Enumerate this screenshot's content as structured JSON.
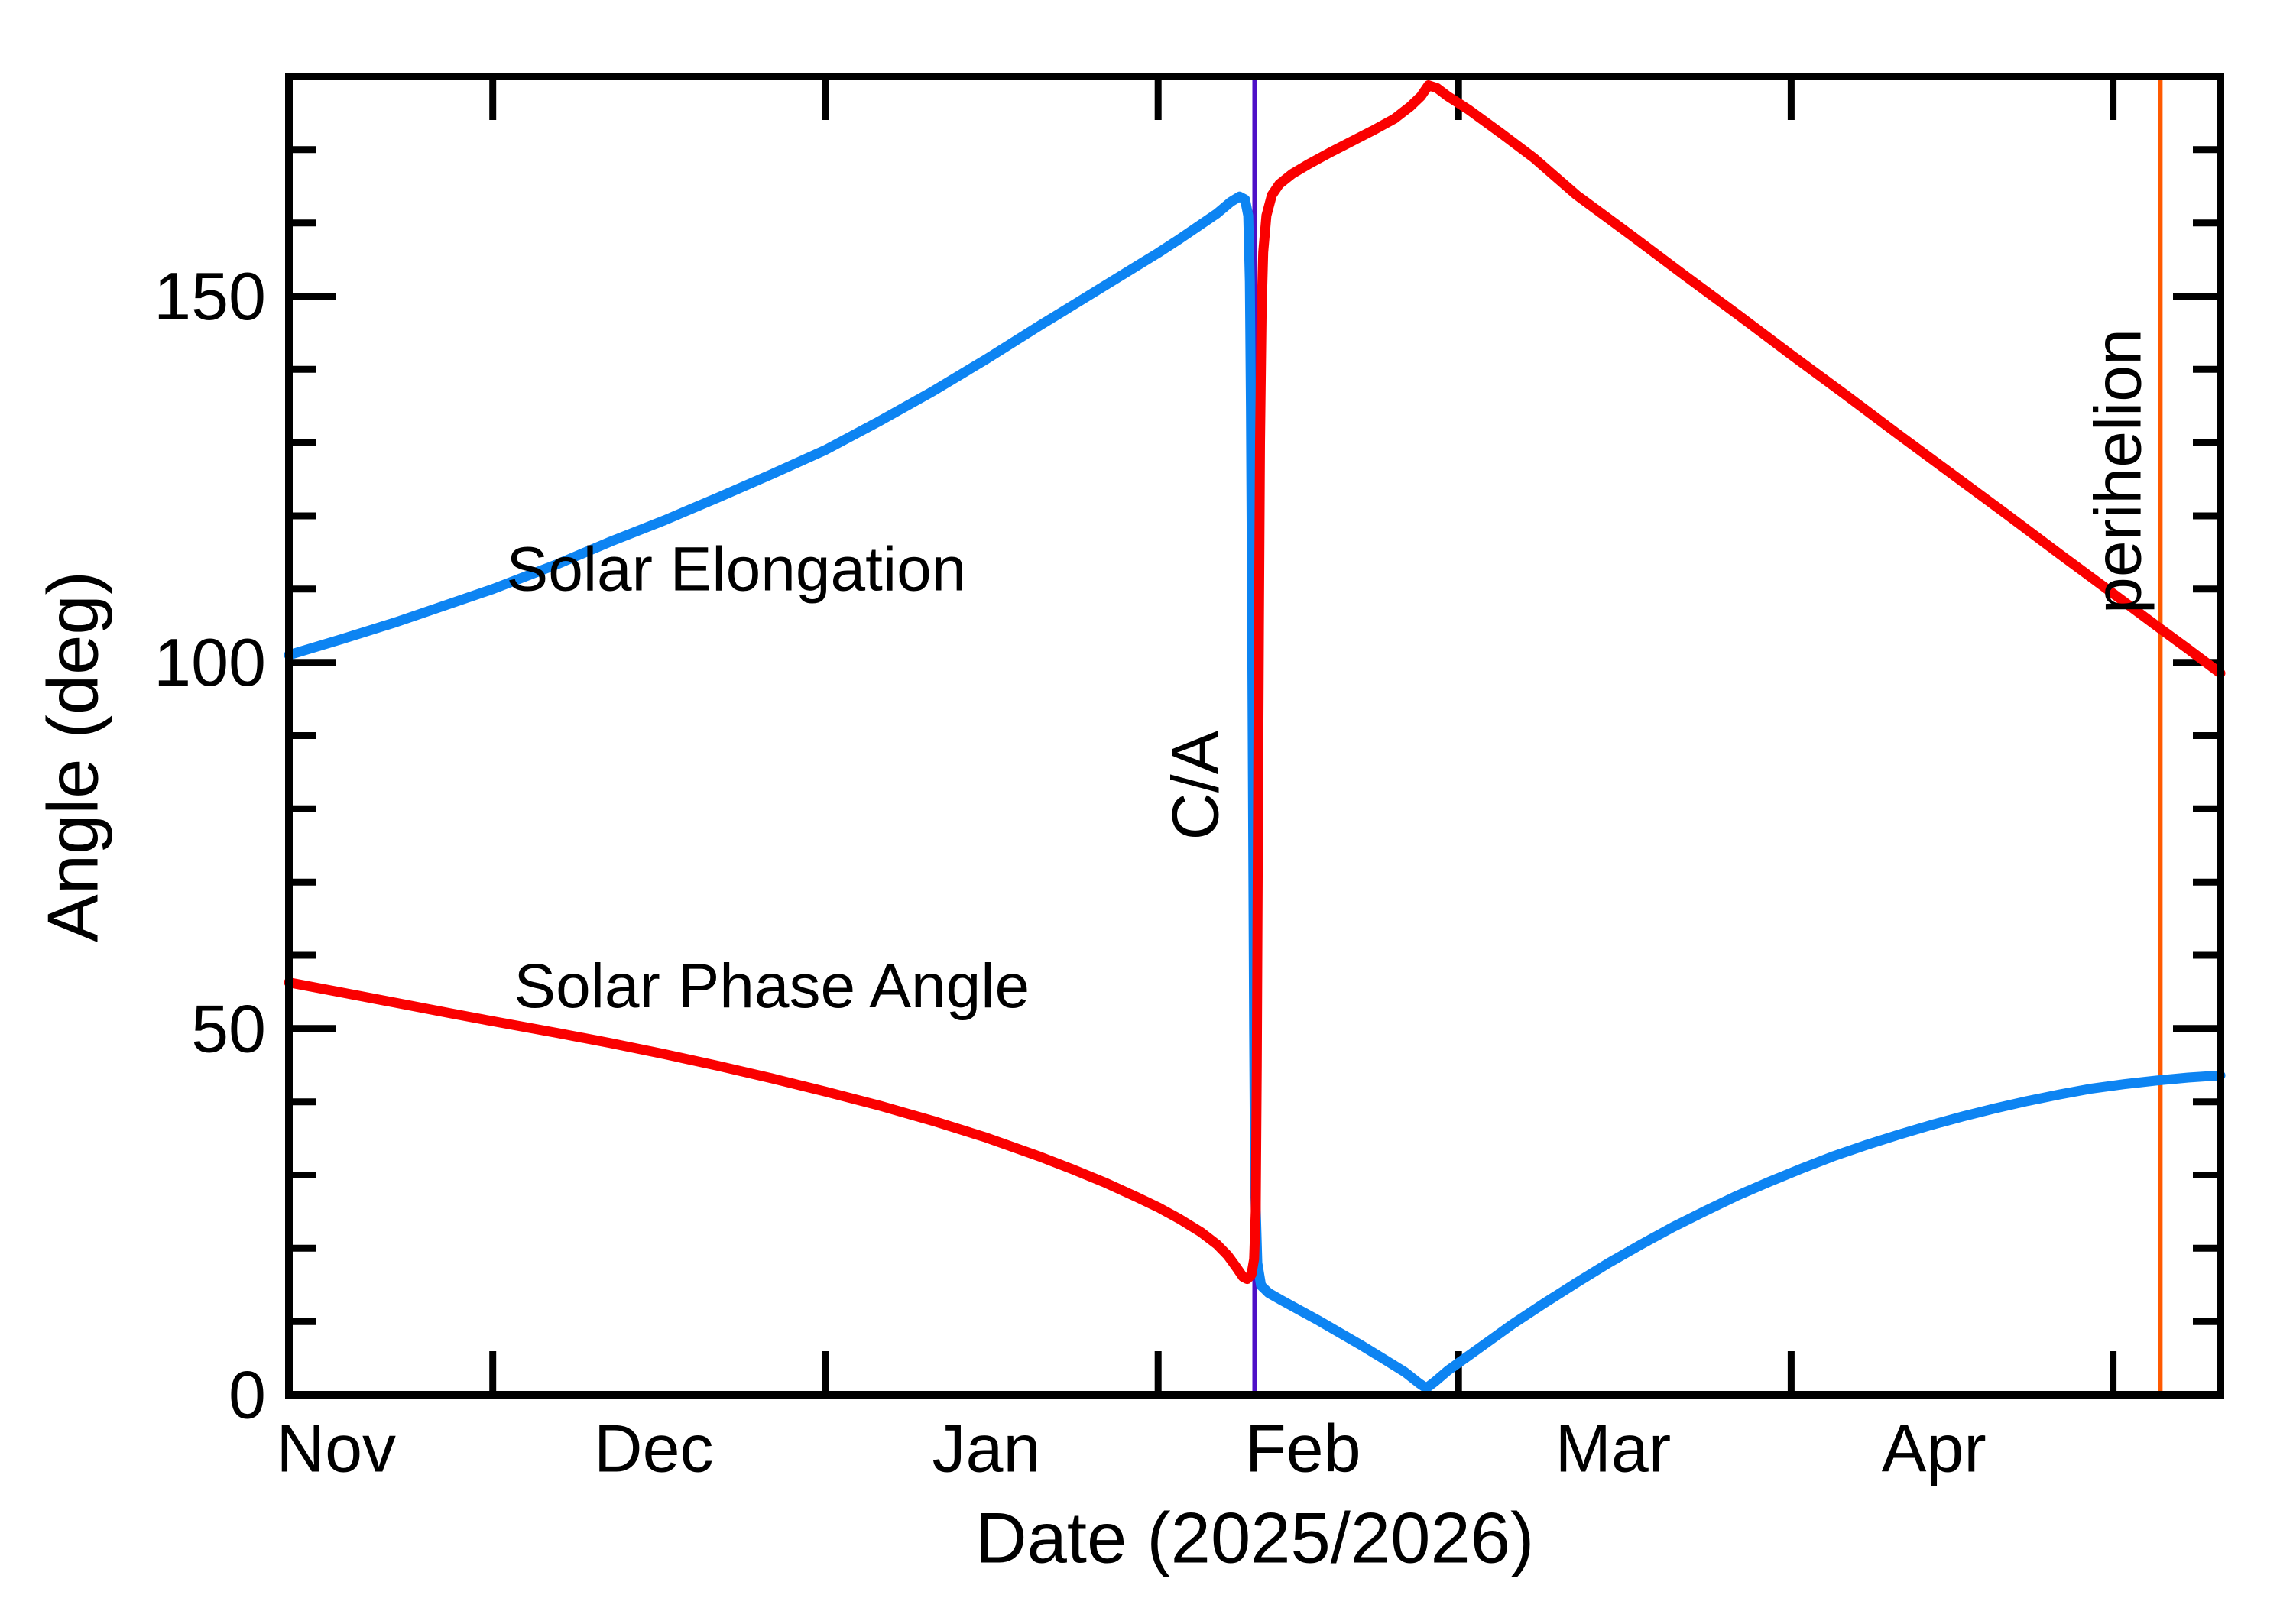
{
  "figure": {
    "background": "#ffffff",
    "frame_color": "#000000"
  },
  "chart_data": {
    "type": "line",
    "title": "",
    "xlabel": "Date (2025/2026)",
    "ylabel": "Angle (deg)",
    "x_axis": {
      "unit": "days from start (Nov 12, 2025)",
      "range_days": [
        0,
        180
      ],
      "month_boundary_tick_days": [
        19,
        50,
        81,
        109,
        140,
        170
      ],
      "month_labels": [
        {
          "text": "Nov",
          "day": 4.4
        },
        {
          "text": "Dec",
          "day": 34.0
        },
        {
          "text": "Jan",
          "day": 65.0
        },
        {
          "text": "Feb",
          "day": 94.5
        },
        {
          "text": "Mar",
          "day": 123.4
        },
        {
          "text": "Apr",
          "day": 153.3
        }
      ]
    },
    "y_axis": {
      "ylim": [
        0,
        180
      ],
      "major_ticks": [
        0,
        50,
        100,
        150
      ],
      "major_tick_labels": [
        "0",
        "50",
        "100",
        "150"
      ],
      "minor_tick_step": 10
    },
    "grid": "off",
    "legend_position": "labels drawn next to curves",
    "series": [
      {
        "name": "Solar Elongation",
        "color": "#0d84f2",
        "label_pos": {
          "day": 41.7,
          "deg": 112.7
        },
        "points": [
          [
            0,
            101
          ],
          [
            5,
            103.2
          ],
          [
            10,
            105.5
          ],
          [
            15,
            108
          ],
          [
            19,
            110
          ],
          [
            25,
            113.4
          ],
          [
            30,
            116.5
          ],
          [
            35,
            119.4
          ],
          [
            40,
            122.5
          ],
          [
            45,
            125.7
          ],
          [
            50,
            129
          ],
          [
            55,
            132.9
          ],
          [
            60,
            137
          ],
          [
            65,
            141.4
          ],
          [
            70,
            146
          ],
          [
            73,
            148.7
          ],
          [
            76,
            151.4
          ],
          [
            79,
            154.1
          ],
          [
            81,
            155.9
          ],
          [
            83,
            157.8
          ],
          [
            85,
            159.8
          ],
          [
            86.5,
            161.3
          ],
          [
            87.8,
            162.9
          ],
          [
            88.6,
            163.6
          ],
          [
            89.1,
            163.2
          ],
          [
            89.4,
            161
          ],
          [
            89.55,
            152
          ],
          [
            89.65,
            135
          ],
          [
            89.75,
            110
          ],
          [
            89.85,
            80
          ],
          [
            89.95,
            50
          ],
          [
            90.05,
            28
          ],
          [
            90.25,
            18
          ],
          [
            90.6,
            14.9
          ],
          [
            91.3,
            13.9
          ],
          [
            92.5,
            12.9
          ],
          [
            94,
            11.7
          ],
          [
            96,
            10.1
          ],
          [
            98,
            8.4
          ],
          [
            100,
            6.7
          ],
          [
            102,
            4.9
          ],
          [
            104,
            3.1
          ],
          [
            105.3,
            1.6
          ],
          [
            106,
            0.9
          ],
          [
            106.8,
            1.8
          ],
          [
            108,
            3.3
          ],
          [
            110,
            5.4
          ],
          [
            112,
            7.5
          ],
          [
            114,
            9.6
          ],
          [
            117,
            12.5
          ],
          [
            120,
            15.3
          ],
          [
            123,
            18
          ],
          [
            126,
            20.5
          ],
          [
            129,
            22.9
          ],
          [
            132,
            25.1
          ],
          [
            135,
            27.2
          ],
          [
            138,
            29.1
          ],
          [
            141,
            30.9
          ],
          [
            144,
            32.6
          ],
          [
            147,
            34.1
          ],
          [
            150,
            35.5
          ],
          [
            153,
            36.8
          ],
          [
            156,
            38
          ],
          [
            159,
            39.1
          ],
          [
            162,
            40.1
          ],
          [
            165,
            41
          ],
          [
            168,
            41.8
          ],
          [
            171,
            42.4
          ],
          [
            174,
            42.9
          ],
          [
            177,
            43.3
          ],
          [
            180,
            43.6
          ]
        ]
      },
      {
        "name": "Solar Phase Angle",
        "color": "#fa0000",
        "label_pos": {
          "day": 45.0,
          "deg": 55.8
        },
        "points": [
          [
            0,
            56.3
          ],
          [
            5,
            54.9
          ],
          [
            10,
            53.5
          ],
          [
            15,
            52.1
          ],
          [
            19,
            51
          ],
          [
            25,
            49.4
          ],
          [
            30,
            48
          ],
          [
            35,
            46.5
          ],
          [
            40,
            44.9
          ],
          [
            45,
            43.2
          ],
          [
            50,
            41.4
          ],
          [
            55,
            39.5
          ],
          [
            60,
            37.4
          ],
          [
            65,
            35.1
          ],
          [
            70,
            32.5
          ],
          [
            73,
            30.8
          ],
          [
            76,
            29
          ],
          [
            79,
            27
          ],
          [
            81,
            25.6
          ],
          [
            83,
            24
          ],
          [
            85,
            22.2
          ],
          [
            86.5,
            20.5
          ],
          [
            87.5,
            19
          ],
          [
            88.3,
            17.4
          ],
          [
            88.9,
            16.1
          ],
          [
            89.3,
            15.8
          ],
          [
            89.7,
            16.4
          ],
          [
            89.95,
            18.5
          ],
          [
            90.1,
            25
          ],
          [
            90.2,
            45
          ],
          [
            90.3,
            75
          ],
          [
            90.4,
            105
          ],
          [
            90.5,
            130
          ],
          [
            90.65,
            148
          ],
          [
            90.8,
            156
          ],
          [
            91.1,
            161
          ],
          [
            91.6,
            163.8
          ],
          [
            92.3,
            165.3
          ],
          [
            93.5,
            166.7
          ],
          [
            95,
            168
          ],
          [
            97,
            169.6
          ],
          [
            99,
            171.1
          ],
          [
            101,
            172.6
          ],
          [
            103,
            174.2
          ],
          [
            104.5,
            175.9
          ],
          [
            105.5,
            177.3
          ],
          [
            106.2,
            178.8
          ],
          [
            107,
            178.4
          ],
          [
            108,
            177.3
          ],
          [
            110,
            175.4
          ],
          [
            113,
            172.2
          ],
          [
            116,
            168.9
          ],
          [
            120,
            163.8
          ],
          [
            125,
            158.4
          ],
          [
            130,
            152.9
          ],
          [
            135,
            147.5
          ],
          [
            140,
            142
          ],
          [
            145,
            136.6
          ],
          [
            150,
            131.1
          ],
          [
            155,
            125.7
          ],
          [
            160,
            120.3
          ],
          [
            165,
            114.8
          ],
          [
            170,
            109.4
          ],
          [
            174.4,
            104.6
          ],
          [
            177,
            101.8
          ],
          [
            180,
            98.5
          ]
        ]
      }
    ],
    "annotations": [
      {
        "type": "vline",
        "label": "C/A",
        "day": 90,
        "color": "#4e0fc7",
        "label_pos": {
          "day": 84.5,
          "deg": 83.2
        }
      },
      {
        "type": "vline",
        "label": "perihelion",
        "day": 174.4,
        "color": "#ff5a00",
        "label_pos": {
          "day": 170.5,
          "deg": 126.1
        }
      }
    ]
  }
}
